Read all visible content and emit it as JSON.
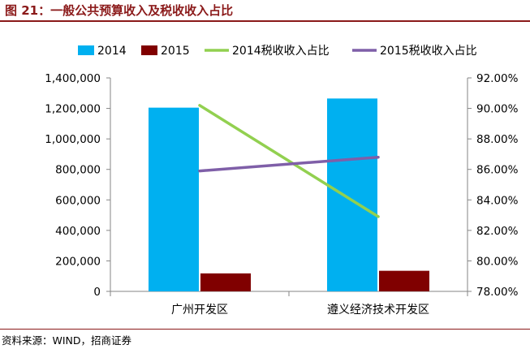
{
  "title": "图 21：一般公共预算收入及税收收入占比",
  "source": "资料来源：WIND，招商证券",
  "chart_data": {
    "type": "bar+line",
    "categories": [
      "广州开发区",
      "遵义经济技术开发区"
    ],
    "y_left": {
      "min": 0,
      "max": 1400000,
      "step": 200000,
      "ticks": [
        "0",
        "200,000",
        "400,000",
        "600,000",
        "800,000",
        "1,000,000",
        "1,200,000",
        "1,400,000"
      ]
    },
    "y_right": {
      "min": 78,
      "max": 92,
      "step": 2,
      "ticks": [
        "78.00%",
        "80.00%",
        "82.00%",
        "84.00%",
        "86.00%",
        "88.00%",
        "90.00%",
        "92.00%"
      ]
    },
    "bar_series": [
      {
        "name": "2014",
        "values": [
          1205000,
          1265000
        ],
        "color": "#00b0f0"
      },
      {
        "name": "2015",
        "values": [
          118000,
          135000
        ],
        "color": "#800000"
      }
    ],
    "line_series": [
      {
        "name": "2014税收收入占比",
        "values": [
          90.2,
          82.9
        ],
        "color": "#92d050"
      },
      {
        "name": "2015税收收入占比",
        "values": [
          85.9,
          86.8
        ],
        "color": "#7f5fa8"
      }
    ],
    "legend": "top",
    "grid": false
  }
}
